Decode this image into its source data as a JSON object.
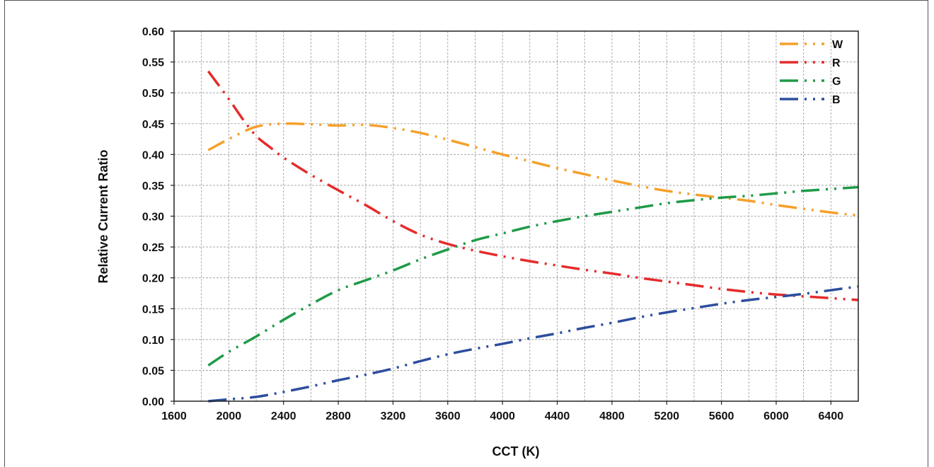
{
  "chart_data": {
    "type": "line",
    "title": "",
    "xlabel": "CCT (K)",
    "ylabel": "Relative Current Ratio",
    "xlim": [
      1600,
      6600
    ],
    "ylim": [
      0,
      0.6
    ],
    "x_ticks": [
      "1600",
      "2000",
      "2400",
      "2800",
      "3200",
      "3600",
      "4000",
      "4400",
      "4800",
      "5200",
      "5600",
      "6000",
      "6400"
    ],
    "y_ticks": [
      "0.00",
      "0.05",
      "0.10",
      "0.15",
      "0.20",
      "0.25",
      "0.30",
      "0.35",
      "0.40",
      "0.45",
      "0.50",
      "0.55",
      "0.60"
    ],
    "x_tick_values": [
      1600,
      2000,
      2400,
      2800,
      3200,
      3600,
      4000,
      4400,
      4800,
      5200,
      5600,
      6000,
      6400
    ],
    "y_tick_values": [
      0,
      0.05,
      0.1,
      0.15,
      0.2,
      0.25,
      0.3,
      0.35,
      0.4,
      0.45,
      0.5,
      0.55,
      0.6
    ],
    "grid": true,
    "legend_position": "top-right",
    "series": [
      {
        "name": "W",
        "color": "#F5A02A",
        "x": [
          1850,
          2000,
          2200,
          2400,
          2600,
          2800,
          3000,
          3200,
          3400,
          3600,
          3800,
          4000,
          4200,
          4400,
          4600,
          4800,
          5000,
          5200,
          5400,
          5600,
          5800,
          6000,
          6200,
          6400,
          6600
        ],
        "y": [
          0.407,
          0.425,
          0.445,
          0.45,
          0.449,
          0.447,
          0.448,
          0.443,
          0.435,
          0.424,
          0.412,
          0.4,
          0.389,
          0.378,
          0.368,
          0.358,
          0.349,
          0.341,
          0.335,
          0.33,
          0.325,
          0.318,
          0.312,
          0.306,
          0.301
        ]
      },
      {
        "name": "R",
        "color": "#E52B2B",
        "x": [
          1850,
          2000,
          2100,
          2200,
          2300,
          2400,
          2600,
          2800,
          3000,
          3200,
          3400,
          3600,
          3800,
          4000,
          4200,
          4400,
          4600,
          4800,
          5000,
          5200,
          5400,
          5600,
          5800,
          6000,
          6200,
          6400,
          6600
        ],
        "y": [
          0.535,
          0.49,
          0.458,
          0.43,
          0.412,
          0.395,
          0.367,
          0.342,
          0.318,
          0.292,
          0.27,
          0.255,
          0.244,
          0.235,
          0.227,
          0.22,
          0.213,
          0.207,
          0.2,
          0.194,
          0.188,
          0.182,
          0.177,
          0.173,
          0.17,
          0.167,
          0.164
        ]
      },
      {
        "name": "G",
        "color": "#1F9A48",
        "x": [
          1850,
          2000,
          2200,
          2400,
          2600,
          2800,
          3000,
          3200,
          3400,
          3600,
          3800,
          4000,
          4200,
          4400,
          4600,
          4800,
          5000,
          5200,
          5400,
          5600,
          5800,
          6000,
          6200,
          6400,
          6600
        ],
        "y": [
          0.058,
          0.08,
          0.105,
          0.132,
          0.157,
          0.18,
          0.196,
          0.212,
          0.23,
          0.246,
          0.261,
          0.272,
          0.283,
          0.292,
          0.3,
          0.307,
          0.314,
          0.321,
          0.326,
          0.33,
          0.333,
          0.337,
          0.341,
          0.344,
          0.347
        ]
      },
      {
        "name": "B",
        "color": "#2D4E9E",
        "x": [
          1850,
          2000,
          2200,
          2400,
          2600,
          2800,
          3000,
          3200,
          3400,
          3600,
          3800,
          4000,
          4200,
          4400,
          4600,
          4800,
          5000,
          5200,
          5400,
          5600,
          5800,
          6000,
          6200,
          6400,
          6600
        ],
        "y": [
          0.0,
          0.003,
          0.007,
          0.015,
          0.024,
          0.034,
          0.043,
          0.053,
          0.065,
          0.076,
          0.085,
          0.093,
          0.102,
          0.11,
          0.119,
          0.127,
          0.136,
          0.144,
          0.151,
          0.158,
          0.164,
          0.169,
          0.174,
          0.18,
          0.186
        ]
      }
    ]
  }
}
